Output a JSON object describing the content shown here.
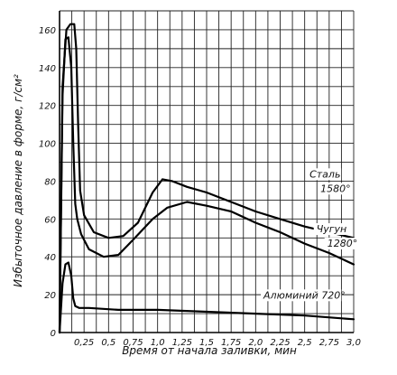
{
  "chart_data": {
    "type": "line",
    "xlabel": "Время от начала заливки, мин",
    "ylabel": "Избыточное давление в форме, г/см²",
    "x_ticks": [
      "0,25",
      "0,5",
      "0,75",
      "1,0",
      "1,25",
      "1,5",
      "1,75",
      "2,0",
      "2,25",
      "2,5",
      "2,75",
      "3,0"
    ],
    "x_tick_values": [
      0.25,
      0.5,
      0.75,
      1.0,
      1.25,
      1.5,
      1.75,
      2.0,
      2.25,
      2.5,
      2.75,
      3.0
    ],
    "y_ticks": [
      "0",
      "20",
      "40",
      "60",
      "80",
      "100",
      "120",
      "140",
      "160"
    ],
    "y_tick_values": [
      0,
      20,
      40,
      60,
      80,
      100,
      120,
      140,
      160
    ],
    "xlim": [
      0,
      3.0
    ],
    "ylim": [
      0,
      170
    ],
    "grid": true,
    "series": [
      {
        "name": "Сталь 1580°",
        "x": [
          0.0,
          0.03,
          0.07,
          0.11,
          0.15,
          0.17,
          0.19,
          0.21,
          0.25,
          0.35,
          0.5,
          0.65,
          0.8,
          0.95,
          1.05,
          1.15,
          1.3,
          1.5,
          1.75,
          2.0,
          2.25,
          2.5,
          2.75,
          3.0
        ],
        "y": [
          0,
          130,
          160,
          163,
          163,
          150,
          110,
          75,
          62,
          53,
          50,
          51,
          58,
          74,
          81,
          80,
          77,
          74,
          69,
          64,
          60,
          56,
          53,
          50
        ]
      },
      {
        "name": "Чугун 1280°",
        "x": [
          0.0,
          0.03,
          0.06,
          0.09,
          0.12,
          0.14,
          0.16,
          0.18,
          0.22,
          0.3,
          0.45,
          0.6,
          0.75,
          0.95,
          1.1,
          1.3,
          1.5,
          1.75,
          2.0,
          2.25,
          2.5,
          2.75,
          3.0
        ],
        "y": [
          0,
          125,
          155,
          156,
          140,
          100,
          68,
          60,
          52,
          44,
          40,
          41,
          49,
          60,
          66,
          69,
          67,
          64,
          58,
          53,
          47,
          42,
          36
        ]
      },
      {
        "name": "Алюминий 720°",
        "x": [
          0.0,
          0.03,
          0.06,
          0.09,
          0.12,
          0.14,
          0.16,
          0.2,
          0.3,
          0.6,
          1.0,
          1.5,
          2.0,
          2.5,
          3.0
        ],
        "y": [
          0,
          26,
          36,
          37,
          30,
          18,
          14,
          13,
          13,
          12,
          12,
          11,
          10,
          9,
          7
        ]
      }
    ],
    "annotations": [
      {
        "text": "Сталь",
        "line2": "1580°",
        "series": "Сталь 1580°"
      },
      {
        "text": "Чугун",
        "line2": "1280°",
        "series": "Чугун 1280°"
      },
      {
        "text": "Алюминий 720°",
        "series": "Алюминий 720°"
      }
    ]
  }
}
